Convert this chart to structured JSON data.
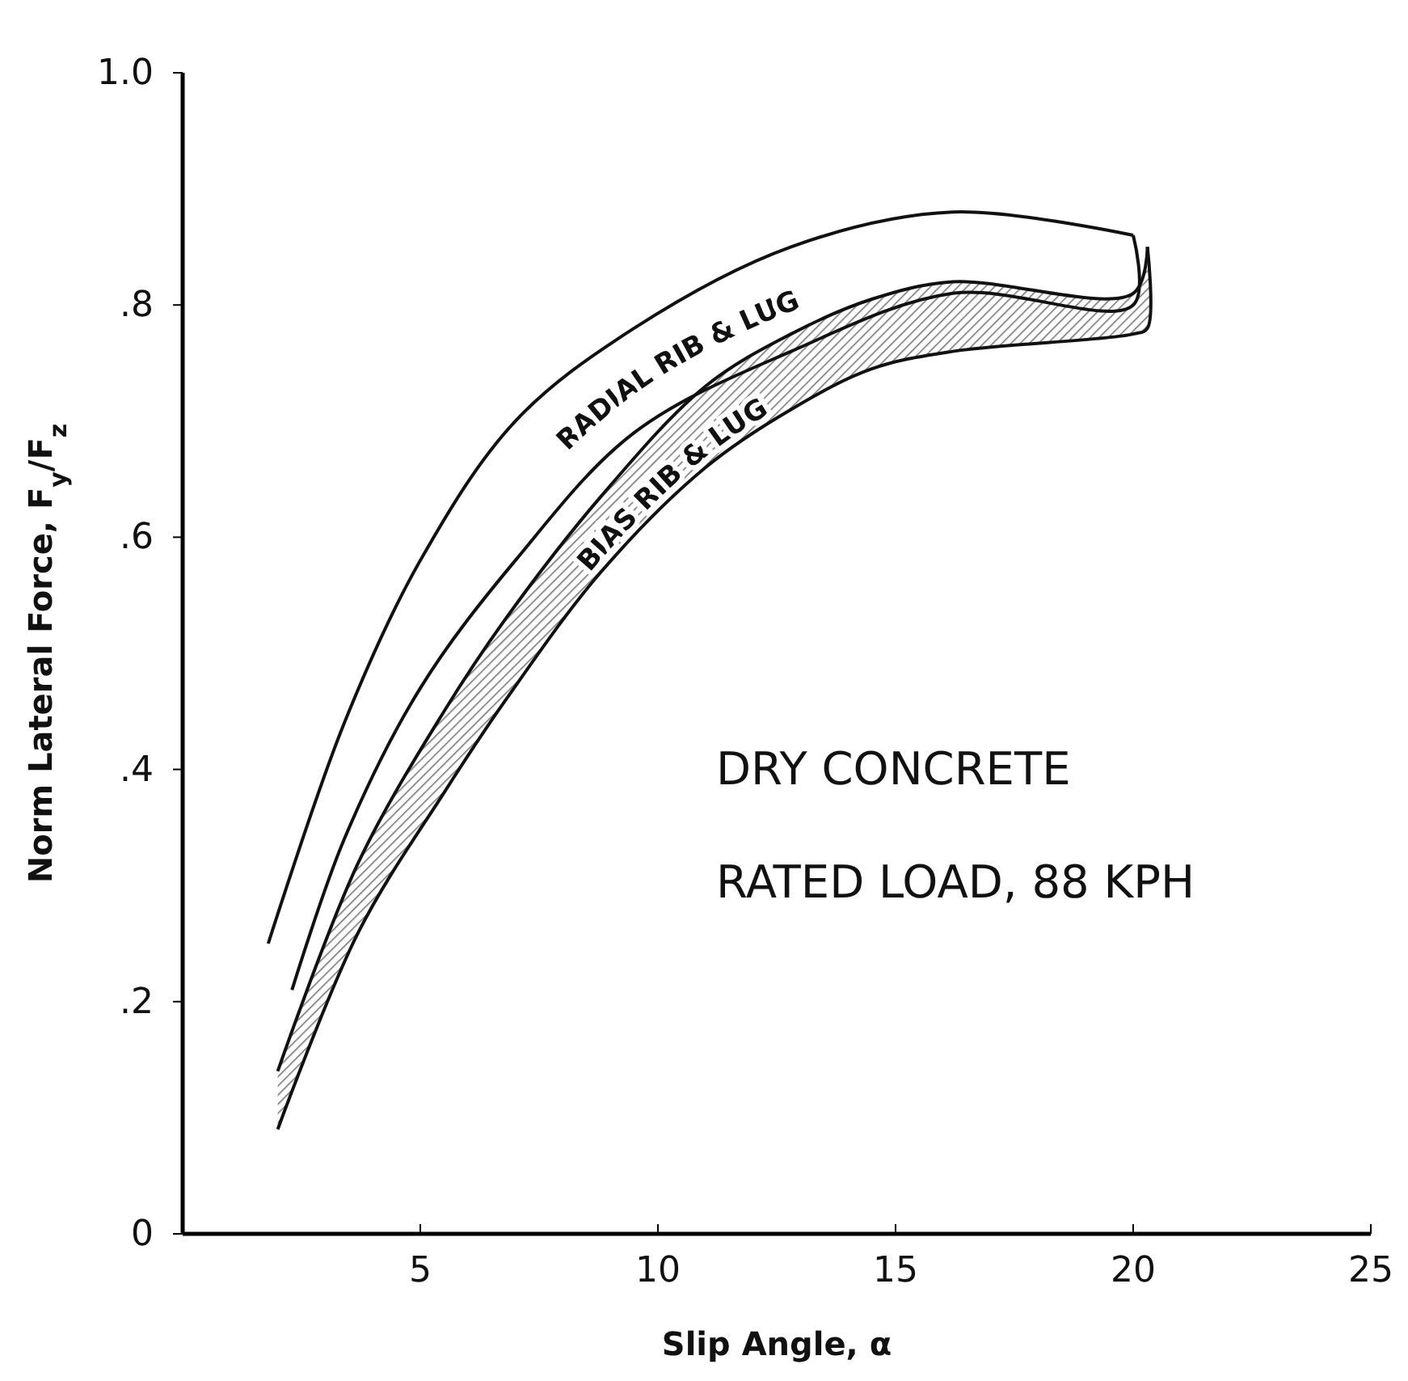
{
  "chart_data": {
    "type": "line",
    "xlabel": "Slip Angle, α",
    "ylabel": "Norm Lateral Force, F$_{y}$/F$_{z}$",
    "xlim": [
      0,
      25
    ],
    "xticks": [
      5,
      10,
      15,
      20,
      25
    ],
    "ylim": [
      0,
      1.0
    ],
    "yticks": [
      0,
      {
        "value": 0.2,
        "label": ".2"
      },
      {
        "value": 0.4,
        "label": ".4"
      },
      {
        "value": 0.6,
        "label": ".6"
      },
      {
        "value": 0.8,
        "label": ".8"
      },
      {
        "value": 1.0,
        "label": "1.0"
      }
    ],
    "grid": false,
    "legend": false,
    "marker": "none",
    "line_style": "solid",
    "annotations": [
      "DRY CONCRETE",
      "RATED LOAD, 88 KPH"
    ],
    "series": [
      {
        "name": "RADIAL RIB & LUG",
        "color": "#111111",
        "x": [
          1.8,
          3.4,
          5,
          7,
          9.5,
          12.8,
          16.2,
          20
        ],
        "values": [
          0.25,
          0.44,
          0.58,
          0.7,
          0.78,
          0.85,
          0.88,
          0.86
        ]
      },
      {
        "color": "#111111",
        "x": [
          2.3,
          3.4,
          5,
          7,
          9.5,
          12.8,
          16.2,
          20,
          20
        ],
        "values": [
          0.21,
          0.34,
          0.47,
          0.58,
          0.69,
          0.76,
          0.81,
          0.8,
          0.86
        ]
      },
      {
        "color": "#111111",
        "x": [
          2.0,
          3.7,
          5.5,
          6.8,
          8.8,
          11,
          12.8,
          14.5,
          16.2,
          20,
          20.3
        ],
        "values": [
          0.14,
          0.32,
          0.45,
          0.53,
          0.635,
          0.73,
          0.775,
          0.805,
          0.82,
          0.81,
          0.85
        ]
      },
      {
        "name": "BIAS RIB & LUG",
        "color": "#111111",
        "x": [
          2.0,
          3.7,
          5.5,
          6.8,
          8.8,
          11,
          12.8,
          14.5,
          16.2,
          20,
          20.3,
          20.3
        ],
        "values": [
          0.09,
          0.26,
          0.38,
          0.46,
          0.57,
          0.66,
          0.71,
          0.745,
          0.76,
          0.775,
          0.78,
          0.85
        ]
      }
    ]
  }
}
